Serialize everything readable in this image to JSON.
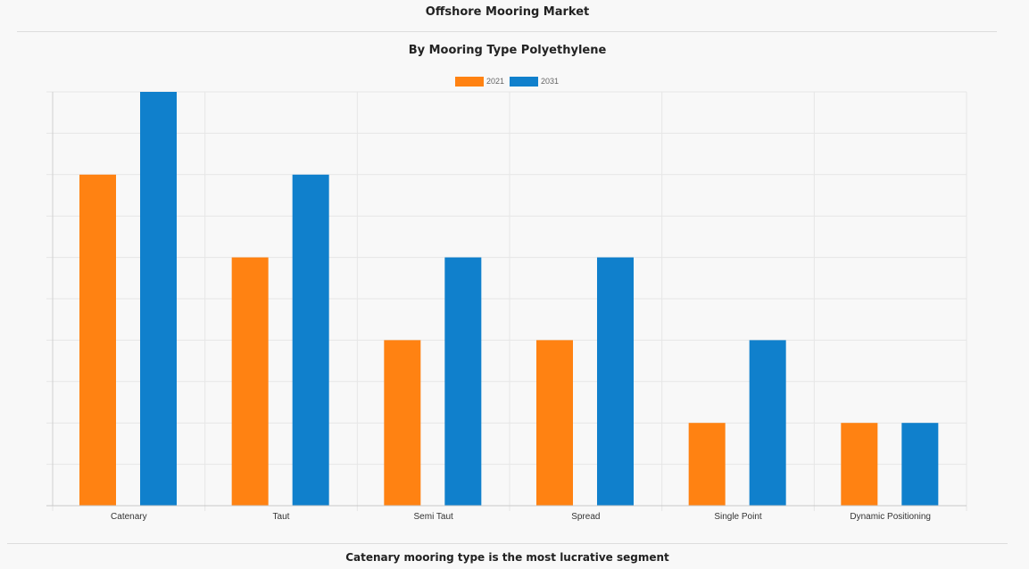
{
  "page": {
    "title": "Offshore Mooring Market",
    "caption": "Catenary mooring type is the most lucrative segment"
  },
  "chart_data": {
    "type": "bar",
    "title": "By Mooring Type Polyethylene",
    "xlabel": "",
    "ylabel": "",
    "categories": [
      "Catenary",
      "Taut",
      "Semi Taut",
      "Spread",
      "Single Point",
      "Dynamic Positioning"
    ],
    "series": [
      {
        "name": "2021",
        "color": "#ff8212",
        "values": [
          8,
          6,
          4,
          4,
          2,
          2
        ]
      },
      {
        "name": "2031",
        "color": "#1080cc",
        "values": [
          10,
          8,
          6,
          6,
          4,
          2
        ]
      }
    ],
    "ylim": [
      0,
      10
    ],
    "y_tick_labels_shown": false,
    "grid": true,
    "legend": "top-center"
  }
}
